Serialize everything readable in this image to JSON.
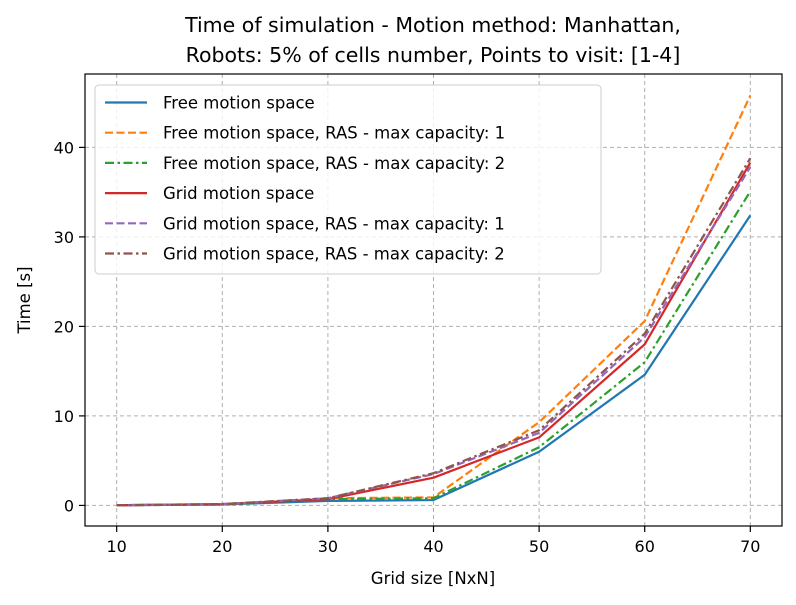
{
  "chart_data": {
    "type": "line",
    "title_line1": "Time of simulation - Motion method: Manhattan,",
    "title_line2": "Robots: 5% of cells number, Points to visit: [1-4]",
    "xlabel": "Grid size [NxN]",
    "ylabel": "Time [s]",
    "x": [
      10,
      20,
      30,
      40,
      50,
      60,
      70
    ],
    "xlim": [
      7,
      73
    ],
    "ylim": [
      -2.3,
      48.2
    ],
    "xticks": [
      "10",
      "20",
      "30",
      "40",
      "50",
      "60",
      "70"
    ],
    "yticks": [
      "0",
      "10",
      "20",
      "30",
      "40"
    ],
    "grid": true,
    "legend_position": "top-left",
    "series": [
      {
        "name": "Free motion space",
        "values": [
          0.02,
          0.1,
          0.5,
          0.6,
          6.0,
          14.6,
          32.4
        ],
        "color": "#1f77b4",
        "dash": "solid"
      },
      {
        "name": "Free motion space, RAS - max capacity: 1",
        "values": [
          0.02,
          0.1,
          0.8,
          0.9,
          9.3,
          20.6,
          45.8
        ],
        "color": "#ff7f0e",
        "dash": "dashed"
      },
      {
        "name": "Free motion space, RAS - max capacity: 2",
        "values": [
          0.02,
          0.1,
          0.7,
          0.8,
          6.5,
          16.0,
          35.1
        ],
        "color": "#2ca02c",
        "dash": "dashdot"
      },
      {
        "name": "Grid motion space",
        "values": [
          0.02,
          0.15,
          0.7,
          3.1,
          7.6,
          18.0,
          38.3
        ],
        "color": "#d62728",
        "dash": "solid"
      },
      {
        "name": "Grid motion space, RAS - max capacity: 1",
        "values": [
          0.02,
          0.15,
          0.8,
          3.5,
          8.1,
          18.8,
          37.8
        ],
        "color": "#9467bd",
        "dash": "dashed"
      },
      {
        "name": "Grid motion space, RAS - max capacity: 2",
        "values": [
          0.02,
          0.15,
          0.8,
          3.6,
          8.4,
          19.2,
          38.8
        ],
        "color": "#8c564b",
        "dash": "dashdot"
      }
    ]
  }
}
